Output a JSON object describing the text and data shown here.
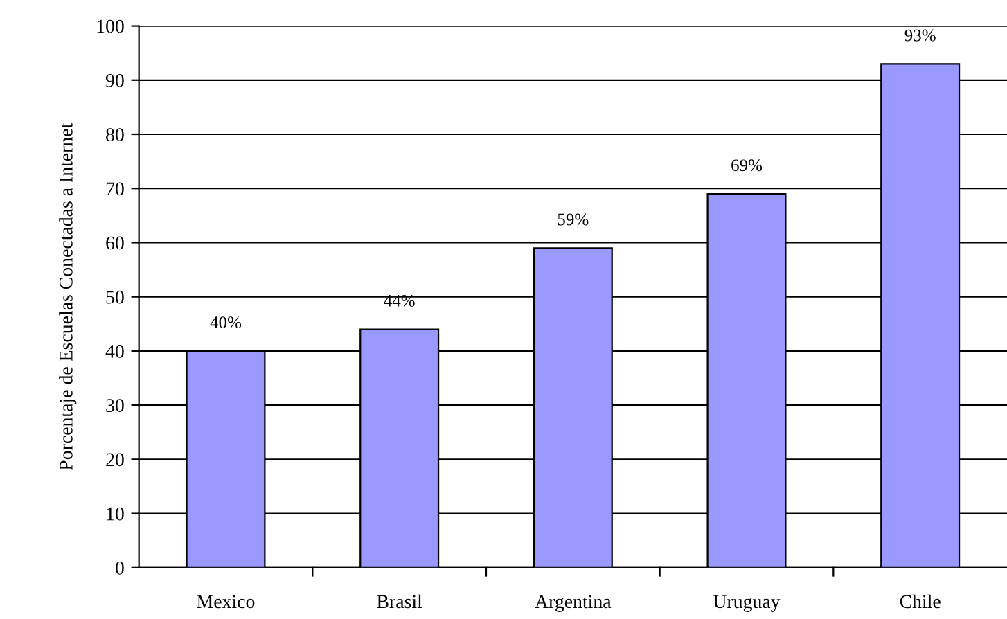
{
  "chart_data": {
    "type": "bar",
    "ylabel": "Porcentaje de Escuelas Conectadas a Internet",
    "categories": [
      "Mexico",
      "Brasil",
      "Argentina",
      "Uruguay",
      "Chile"
    ],
    "values": [
      40,
      44,
      59,
      69,
      93
    ],
    "value_labels": [
      "40%",
      "44%",
      "59%",
      "69%",
      "93%"
    ],
    "color": "#9999ff",
    "ylim": [
      0,
      100
    ],
    "yticks": [
      0,
      10,
      20,
      30,
      40,
      50,
      60,
      70,
      80,
      90,
      100
    ],
    "grid": "y",
    "legend": false
  }
}
